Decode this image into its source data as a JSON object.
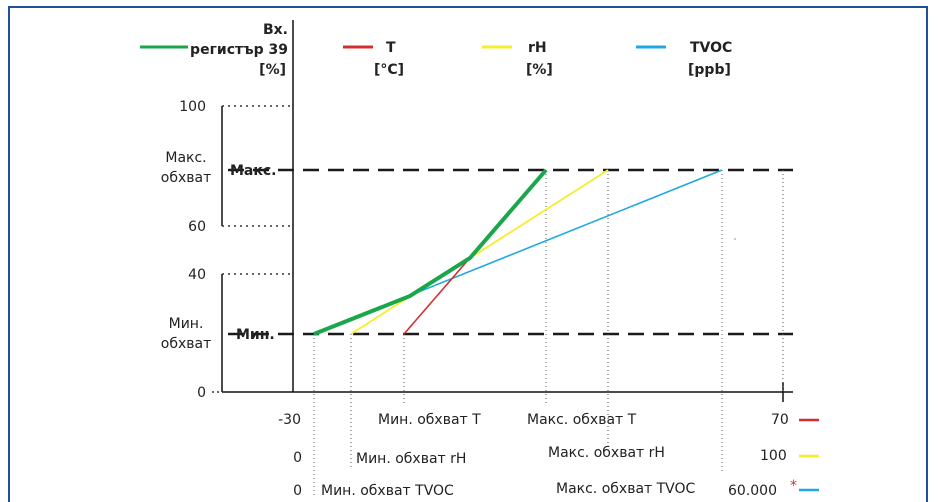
{
  "y_axis_title": [
    "Вх.",
    "регистър 39",
    "[%]"
  ],
  "legend": [
    {
      "lines": [
        "T",
        "[°C]"
      ],
      "color": "#d32f2f"
    },
    {
      "lines": [
        "rH",
        "[%]"
      ],
      "color": "#f5ee2a"
    },
    {
      "lines": [
        "TVOC",
        "[ppb]"
      ],
      "color": "#20a8e0"
    }
  ],
  "y_ticks": [
    "100",
    "60",
    "40",
    "0"
  ],
  "range_labels": {
    "max_range": [
      "Макс.",
      "обхват"
    ],
    "max": "Макс.",
    "min_range": [
      "Мин.",
      "обхват"
    ],
    "min": "Мин."
  },
  "x_rows": {
    "T": {
      "start": "-30",
      "min": "Мин. обхват T",
      "max": "Макс. обхват T",
      "end": "70",
      "color": "#d32f2f"
    },
    "rH": {
      "start": "0",
      "min": "Мин. обхват rH",
      "max": "Макс. обхват rH",
      "end": "100",
      "color": "#f5ee2a"
    },
    "TVOC": {
      "start": "0",
      "min": "Мин. обхват TVOC",
      "max": "Макс. обхват TVOC",
      "end": "60.000",
      "asterisk": "*",
      "color": "#20a8e0"
    }
  },
  "colors": {
    "output": "#1aa64a",
    "dash": "#1a1a1a",
    "frame": "#1f4e9e"
  }
}
